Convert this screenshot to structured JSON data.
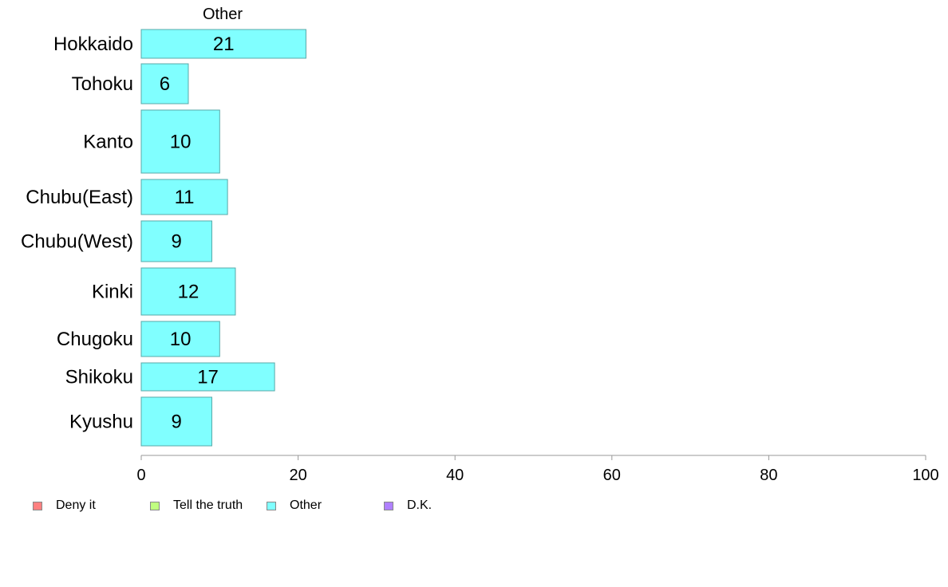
{
  "chart_data": {
    "type": "bar",
    "orientation": "horizontal",
    "title": "Other",
    "categories": [
      "Hokkaido",
      "Tohoku",
      "Kanto",
      "Chubu(East)",
      "Chubu(West)",
      "Kinki",
      "Chugoku",
      "Shikoku",
      "Kyushu"
    ],
    "series": [
      {
        "name": "Other",
        "values": [
          21,
          6,
          10,
          11,
          9,
          12,
          10,
          17,
          9
        ],
        "color": "#80ffff"
      }
    ],
    "data_labels": [
      "21",
      "6",
      "10",
      "11",
      "9",
      "12",
      "10",
      "17",
      "9"
    ],
    "xlim": [
      0,
      100
    ],
    "xticks": [
      "0",
      "20",
      "40",
      "60",
      "80",
      "100"
    ],
    "xlabel": "",
    "ylabel": "",
    "grid": false,
    "legend_position": "bottom-left",
    "legend": [
      {
        "label": "Deny it",
        "color": "#ff8080"
      },
      {
        "label": "Tell the truth",
        "color": "#c0ff80"
      },
      {
        "label": "Other",
        "color": "#80ffff"
      },
      {
        "label": "D.K.",
        "color": "#b080ff"
      }
    ]
  }
}
